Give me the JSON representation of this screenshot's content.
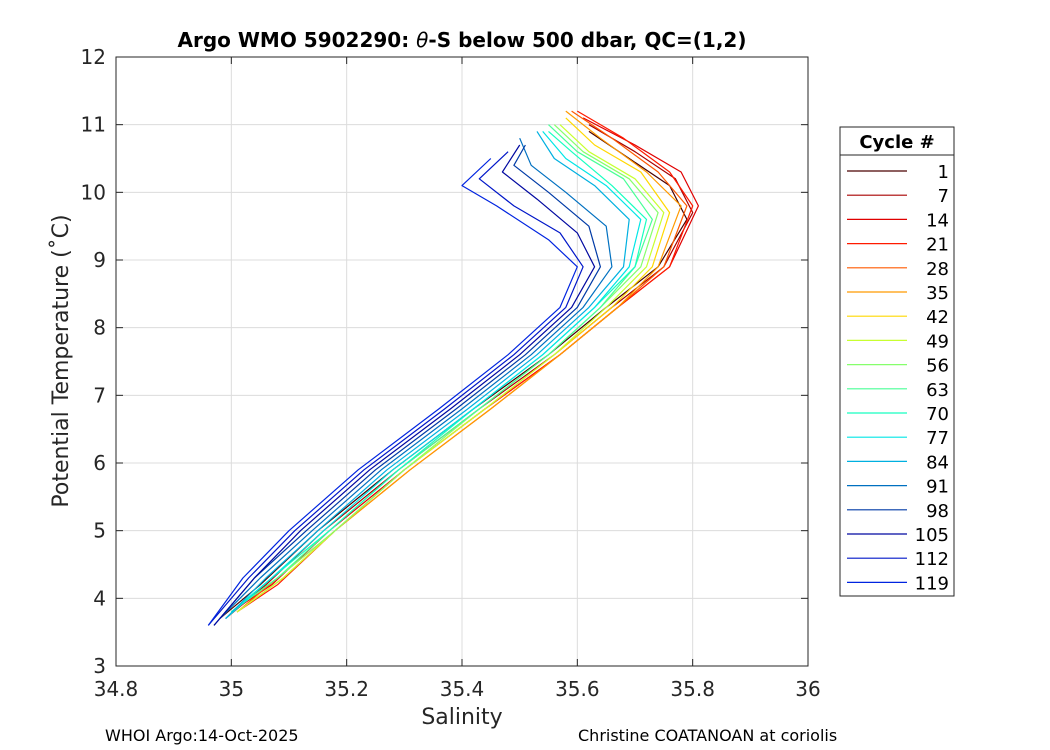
{
  "chart_data": {
    "type": "line",
    "title": "Argo WMO 5902290: θ-S below 500 dbar,  QC=(1,2)",
    "title_parts": [
      "Argo WMO 5902290: ",
      "θ",
      "-S below 500 dbar,  QC=(1,2)"
    ],
    "xlabel": "Salinity",
    "ylabel": "Potential Temperature (˚C)",
    "xlim": [
      34.8,
      36
    ],
    "ylim": [
      3,
      12
    ],
    "xticks": [
      34.8,
      35,
      35.2,
      35.4,
      35.6,
      35.8,
      36
    ],
    "xtick_labels": [
      "34.8",
      "35",
      "35.2",
      "35.4",
      "35.6",
      "35.8",
      "36"
    ],
    "yticks": [
      3,
      4,
      5,
      6,
      7,
      8,
      9,
      10,
      11,
      12
    ],
    "ytick_labels": [
      "3",
      "4",
      "5",
      "6",
      "7",
      "8",
      "9",
      "10",
      "11",
      "12"
    ],
    "grid": true,
    "legend": {
      "title": "Cycle #",
      "placement": "right-outside",
      "entries": [
        {
          "name": "1",
          "color": "#4a0000"
        },
        {
          "name": "7",
          "color": "#a80000"
        },
        {
          "name": "14",
          "color": "#e00000"
        },
        {
          "name": "21",
          "color": "#ff1a00"
        },
        {
          "name": "28",
          "color": "#ff5a00"
        },
        {
          "name": "35",
          "color": "#ff9a00"
        },
        {
          "name": "42",
          "color": "#ffd800"
        },
        {
          "name": "49",
          "color": "#c8ff30"
        },
        {
          "name": "56",
          "color": "#86ff6c"
        },
        {
          "name": "63",
          "color": "#48ff96"
        },
        {
          "name": "70",
          "color": "#16ffc0"
        },
        {
          "name": "77",
          "color": "#00e6e6"
        },
        {
          "name": "84",
          "color": "#00b0e0"
        },
        {
          "name": "91",
          "color": "#0070c0"
        },
        {
          "name": "98",
          "color": "#003aa6"
        },
        {
          "name": "105",
          "color": "#0008a0"
        },
        {
          "name": "112",
          "color": "#0016c8"
        },
        {
          "name": "119",
          "color": "#0024e0"
        }
      ]
    },
    "series": [
      {
        "name": "1",
        "color": "#4a0000",
        "x": [
          34.98,
          35.05,
          35.15,
          35.28,
          35.42,
          35.55,
          35.65,
          35.74,
          35.79,
          35.76,
          35.69,
          35.62
        ],
        "y": [
          3.7,
          4.2,
          5.0,
          5.9,
          6.8,
          7.6,
          8.3,
          8.9,
          9.6,
          10.1,
          10.5,
          10.9
        ]
      },
      {
        "name": "7",
        "color": "#a80000",
        "x": [
          34.99,
          35.06,
          35.16,
          35.29,
          35.43,
          35.56,
          35.66,
          35.75,
          35.8,
          35.77,
          35.7,
          35.62
        ],
        "y": [
          3.7,
          4.2,
          5.0,
          5.9,
          6.8,
          7.6,
          8.3,
          8.9,
          9.7,
          10.2,
          10.6,
          11.0
        ]
      },
      {
        "name": "14",
        "color": "#e00000",
        "x": [
          35.0,
          35.07,
          35.17,
          35.3,
          35.44,
          35.57,
          35.67,
          35.76,
          35.81,
          35.78,
          35.7,
          35.61
        ],
        "y": [
          3.8,
          4.2,
          5.0,
          5.9,
          6.8,
          7.6,
          8.3,
          8.9,
          9.8,
          10.3,
          10.7,
          11.1
        ]
      },
      {
        "name": "21",
        "color": "#ff1a00",
        "x": [
          35.01,
          35.08,
          35.18,
          35.3,
          35.44,
          35.57,
          35.67,
          35.76,
          35.8,
          35.76,
          35.68,
          35.6
        ],
        "y": [
          3.8,
          4.2,
          5.0,
          5.9,
          6.8,
          7.6,
          8.3,
          8.9,
          9.8,
          10.3,
          10.8,
          11.2
        ]
      },
      {
        "name": "28",
        "color": "#ff5a00",
        "x": [
          35.01,
          35.08,
          35.18,
          35.31,
          35.45,
          35.57,
          35.67,
          35.75,
          35.79,
          35.74,
          35.66,
          35.59
        ],
        "y": [
          3.8,
          4.3,
          5.0,
          5.9,
          6.8,
          7.6,
          8.3,
          8.9,
          9.8,
          10.3,
          10.8,
          11.2
        ]
      },
      {
        "name": "35",
        "color": "#ff9a00",
        "x": [
          35.01,
          35.09,
          35.18,
          35.31,
          35.45,
          35.57,
          35.67,
          35.74,
          35.78,
          35.72,
          35.64,
          35.58
        ],
        "y": [
          3.8,
          4.3,
          5.0,
          5.9,
          6.8,
          7.6,
          8.3,
          8.9,
          9.8,
          10.3,
          10.8,
          11.2
        ]
      },
      {
        "name": "42",
        "color": "#ffd800",
        "x": [
          35.01,
          35.09,
          35.18,
          35.3,
          35.44,
          35.56,
          35.66,
          35.73,
          35.76,
          35.71,
          35.63,
          35.58
        ],
        "y": [
          3.8,
          4.3,
          5.0,
          5.9,
          6.8,
          7.6,
          8.3,
          8.9,
          9.7,
          10.3,
          10.7,
          11.1
        ]
      },
      {
        "name": "49",
        "color": "#c8ff30",
        "x": [
          35.01,
          35.09,
          35.18,
          35.3,
          35.44,
          35.56,
          35.65,
          35.72,
          35.75,
          35.7,
          35.62,
          35.57
        ],
        "y": [
          3.8,
          4.3,
          5.0,
          5.9,
          6.8,
          7.6,
          8.3,
          8.9,
          9.7,
          10.2,
          10.6,
          11.0
        ]
      },
      {
        "name": "56",
        "color": "#86ff6c",
        "x": [
          35.0,
          35.08,
          35.18,
          35.3,
          35.43,
          35.55,
          35.64,
          35.71,
          35.74,
          35.69,
          35.61,
          35.56
        ],
        "y": [
          3.8,
          4.3,
          5.0,
          5.9,
          6.8,
          7.6,
          8.3,
          8.9,
          9.7,
          10.2,
          10.6,
          11.0
        ]
      },
      {
        "name": "63",
        "color": "#48ff96",
        "x": [
          35.0,
          35.08,
          35.17,
          35.29,
          35.43,
          35.55,
          35.64,
          35.7,
          35.73,
          35.68,
          35.6,
          35.55
        ],
        "y": [
          3.8,
          4.3,
          5.0,
          5.9,
          6.8,
          7.6,
          8.3,
          8.9,
          9.6,
          10.2,
          10.6,
          11.0
        ]
      },
      {
        "name": "70",
        "color": "#16ffc0",
        "x": [
          35.0,
          35.07,
          35.17,
          35.29,
          35.42,
          35.54,
          35.63,
          35.7,
          35.72,
          35.66,
          35.59,
          35.55
        ],
        "y": [
          3.8,
          4.3,
          5.0,
          5.9,
          6.8,
          7.6,
          8.3,
          8.9,
          9.6,
          10.1,
          10.6,
          10.9
        ]
      },
      {
        "name": "77",
        "color": "#00e6e6",
        "x": [
          34.99,
          35.07,
          35.16,
          35.28,
          35.42,
          35.54,
          35.63,
          35.69,
          35.71,
          35.65,
          35.58,
          35.54
        ],
        "y": [
          3.7,
          4.3,
          5.0,
          5.9,
          6.8,
          7.6,
          8.3,
          8.9,
          9.6,
          10.1,
          10.5,
          10.9
        ]
      },
      {
        "name": "84",
        "color": "#00b0e0",
        "x": [
          34.99,
          35.06,
          35.15,
          35.27,
          35.41,
          35.53,
          35.62,
          35.68,
          35.69,
          35.63,
          35.56,
          35.53
        ],
        "y": [
          3.7,
          4.3,
          5.0,
          5.9,
          6.8,
          7.6,
          8.3,
          8.9,
          9.6,
          10.1,
          10.5,
          10.9
        ]
      },
      {
        "name": "91",
        "color": "#0070c0",
        "x": [
          34.98,
          35.05,
          35.14,
          35.26,
          35.4,
          35.52,
          35.61,
          35.66,
          35.65,
          35.58,
          35.52,
          35.5
        ],
        "y": [
          3.7,
          4.3,
          5.0,
          5.9,
          6.8,
          7.6,
          8.3,
          8.9,
          9.5,
          10.0,
          10.4,
          10.8
        ]
      },
      {
        "name": "98",
        "color": "#003aa6",
        "x": [
          34.97,
          35.04,
          35.13,
          35.25,
          35.39,
          35.51,
          35.6,
          35.64,
          35.62,
          35.55,
          35.49,
          35.51
        ],
        "y": [
          3.6,
          4.3,
          5.0,
          5.9,
          6.8,
          7.6,
          8.3,
          8.9,
          9.5,
          10.0,
          10.4,
          10.7
        ]
      },
      {
        "name": "105",
        "color": "#0008a0",
        "x": [
          34.97,
          35.04,
          35.12,
          35.24,
          35.38,
          35.5,
          35.59,
          35.63,
          35.6,
          35.53,
          35.47,
          35.5
        ],
        "y": [
          3.6,
          4.3,
          5.0,
          5.9,
          6.8,
          7.6,
          8.3,
          8.9,
          9.4,
          9.9,
          10.3,
          10.7
        ]
      },
      {
        "name": "112",
        "color": "#0016c8",
        "x": [
          34.96,
          35.03,
          35.11,
          35.23,
          35.37,
          35.49,
          35.58,
          35.61,
          35.57,
          35.49,
          35.43,
          35.48
        ],
        "y": [
          3.6,
          4.3,
          5.0,
          5.9,
          6.8,
          7.6,
          8.3,
          8.9,
          9.4,
          9.8,
          10.2,
          10.6
        ]
      },
      {
        "name": "119",
        "color": "#0024e0",
        "x": [
          34.96,
          35.02,
          35.1,
          35.22,
          35.36,
          35.48,
          35.57,
          35.6,
          35.55,
          35.46,
          35.4,
          35.45
        ],
        "y": [
          3.6,
          4.3,
          5.0,
          5.9,
          6.8,
          7.6,
          8.3,
          8.9,
          9.3,
          9.8,
          10.1,
          10.5
        ]
      }
    ]
  },
  "footer": {
    "left": "WHOI Argo:14-Oct-2025",
    "right": "Christine COATANOAN at coriolis"
  }
}
